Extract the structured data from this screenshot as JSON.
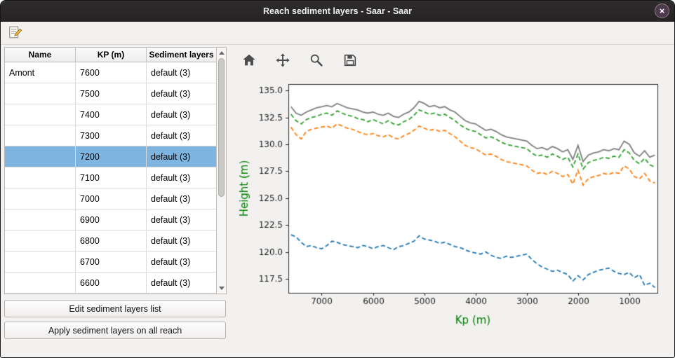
{
  "window": {
    "title": "Reach sediment layers - Saar - Saar",
    "close_label": "×"
  },
  "table": {
    "columns": [
      "Name",
      "KP (m)",
      "Sediment layers"
    ],
    "selected_index": 4,
    "rows": [
      {
        "name": "Amont",
        "kp": "7600",
        "layers": "default (3)"
      },
      {
        "name": "",
        "kp": "7500",
        "layers": "default (3)"
      },
      {
        "name": "",
        "kp": "7400",
        "layers": "default (3)"
      },
      {
        "name": "",
        "kp": "7300",
        "layers": "default (3)"
      },
      {
        "name": "",
        "kp": "7200",
        "layers": "default (3)"
      },
      {
        "name": "",
        "kp": "7100",
        "layers": "default (3)"
      },
      {
        "name": "",
        "kp": "7000",
        "layers": "default (3)"
      },
      {
        "name": "",
        "kp": "6900",
        "layers": "default (3)"
      },
      {
        "name": "",
        "kp": "6800",
        "layers": "default (3)"
      },
      {
        "name": "",
        "kp": "6700",
        "layers": "default (3)"
      },
      {
        "name": "",
        "kp": "6600",
        "layers": "default (3)"
      }
    ]
  },
  "buttons": {
    "edit_list": "Edit sediment layers list",
    "apply_all": "Apply sediment layers on all reach"
  },
  "plot_toolbar": {
    "icons": [
      "home",
      "pan",
      "zoom",
      "save"
    ]
  },
  "chart_data": {
    "type": "line",
    "title": "",
    "xlabel": "Kp (m)",
    "ylabel": "Height (m)",
    "axis_label_color": "#008000",
    "tick_color": "#1a1a1a",
    "plot_bg": "#ffffff",
    "grid": false,
    "x_reversed": true,
    "xlim": [
      7650,
      450
    ],
    "ylim": [
      116.2,
      135.6
    ],
    "xticks": [
      7000,
      6000,
      5000,
      4000,
      3000,
      2000,
      1000
    ],
    "yticks": [
      117.5,
      120.0,
      122.5,
      125.0,
      127.5,
      130.0,
      132.5,
      135.0
    ],
    "x": [
      7600,
      7500,
      7400,
      7300,
      7200,
      7100,
      7000,
      6900,
      6800,
      6700,
      6600,
      6500,
      6400,
      6300,
      6200,
      6100,
      6000,
      5900,
      5800,
      5700,
      5600,
      5500,
      5400,
      5300,
      5200,
      5100,
      5000,
      4900,
      4800,
      4700,
      4600,
      4500,
      4400,
      4300,
      4200,
      4100,
      4000,
      3900,
      3800,
      3700,
      3600,
      3500,
      3400,
      3300,
      3200,
      3100,
      3000,
      2900,
      2800,
      2700,
      2600,
      2500,
      2400,
      2300,
      2200,
      2100,
      2000,
      1900,
      1800,
      1700,
      1600,
      1500,
      1400,
      1300,
      1200,
      1100,
      1000,
      900,
      800,
      700,
      600,
      500
    ],
    "series": [
      {
        "name": "blue-dashed-layer",
        "color": "#1f77b4",
        "style": "dashed",
        "values": [
          121.6,
          121.4,
          120.9,
          120.5,
          120.6,
          120.4,
          120.3,
          120.6,
          121.0,
          120.9,
          120.7,
          120.6,
          120.5,
          120.4,
          120.6,
          120.5,
          120.3,
          120.5,
          120.6,
          120.4,
          120.2,
          120.5,
          120.6,
          120.8,
          121.0,
          121.5,
          121.2,
          121.1,
          121.0,
          120.8,
          120.9,
          120.7,
          120.5,
          120.4,
          120.2,
          120.0,
          119.9,
          119.8,
          120.0,
          119.7,
          119.5,
          119.4,
          119.6,
          119.5,
          119.6,
          119.7,
          119.8,
          119.3,
          118.9,
          118.6,
          118.4,
          118.2,
          118.3,
          118.1,
          117.9,
          117.3,
          117.8,
          117.4,
          117.9,
          118.1,
          118.3,
          118.4,
          118.5,
          118.2,
          118.0,
          117.9,
          118.1,
          117.6,
          117.9,
          116.9,
          117.1,
          116.7
        ]
      },
      {
        "name": "orange-dashed-layer",
        "color": "#ff7f0e",
        "style": "dashed",
        "values": [
          131.6,
          130.9,
          130.5,
          131.2,
          131.4,
          131.5,
          131.6,
          131.7,
          131.5,
          131.9,
          131.7,
          131.5,
          131.4,
          131.2,
          131.0,
          130.9,
          131.0,
          130.8,
          130.7,
          130.9,
          130.6,
          130.5,
          130.8,
          131.0,
          131.3,
          131.7,
          131.5,
          131.3,
          131.4,
          131.2,
          131.3,
          131.0,
          130.7,
          130.3,
          129.9,
          129.7,
          129.6,
          129.3,
          129.0,
          129.1,
          128.9,
          128.6,
          128.4,
          128.3,
          128.2,
          128.1,
          128.0,
          127.6,
          127.3,
          127.4,
          127.2,
          127.5,
          127.3,
          127.0,
          127.2,
          126.3,
          127.6,
          126.2,
          126.8,
          127.0,
          127.1,
          127.3,
          127.2,
          127.4,
          127.3,
          128.0,
          127.7,
          127.0,
          126.8,
          127.3,
          126.6,
          126.4
        ]
      },
      {
        "name": "green-dashed-layer",
        "color": "#2ca02c",
        "style": "dashed",
        "values": [
          132.8,
          132.2,
          131.9,
          132.3,
          132.5,
          132.6,
          132.8,
          132.9,
          132.7,
          133.1,
          132.9,
          132.7,
          132.6,
          132.4,
          132.3,
          132.1,
          132.3,
          132.1,
          131.9,
          132.2,
          131.9,
          131.8,
          132.1,
          132.3,
          132.7,
          133.2,
          133.0,
          132.8,
          132.9,
          132.7,
          132.8,
          132.5,
          132.2,
          131.8,
          131.5,
          131.3,
          131.2,
          130.9,
          130.6,
          130.7,
          130.5,
          130.2,
          130.0,
          129.9,
          129.8,
          129.7,
          129.6,
          129.2,
          128.9,
          129.0,
          128.8,
          129.1,
          128.9,
          128.6,
          128.8,
          127.9,
          129.1,
          127.7,
          128.3,
          128.5,
          128.6,
          128.8,
          128.7,
          128.9,
          128.8,
          129.5,
          129.2,
          128.5,
          128.2,
          128.7,
          128.1,
          127.9
        ]
      },
      {
        "name": "gray-solid-top-profile",
        "color": "#7f7f7f",
        "style": "solid",
        "values": [
          133.5,
          132.9,
          132.7,
          133.0,
          133.2,
          133.4,
          133.5,
          133.6,
          133.5,
          133.8,
          133.6,
          133.4,
          133.3,
          133.2,
          133.0,
          132.9,
          133.0,
          132.8,
          132.7,
          132.9,
          132.6,
          132.5,
          132.8,
          133.0,
          133.4,
          134.0,
          133.8,
          133.5,
          133.6,
          133.4,
          133.5,
          133.2,
          133.0,
          132.6,
          132.2,
          132.0,
          131.9,
          131.6,
          131.3,
          131.4,
          131.2,
          130.9,
          130.7,
          130.6,
          130.5,
          130.4,
          130.3,
          129.9,
          129.6,
          129.7,
          129.5,
          129.8,
          129.6,
          129.3,
          129.5,
          128.6,
          129.9,
          128.4,
          129.0,
          129.2,
          129.3,
          129.5,
          129.4,
          129.6,
          129.5,
          130.3,
          130.0,
          129.2,
          128.9,
          129.4,
          128.8,
          129.0
        ]
      }
    ]
  }
}
